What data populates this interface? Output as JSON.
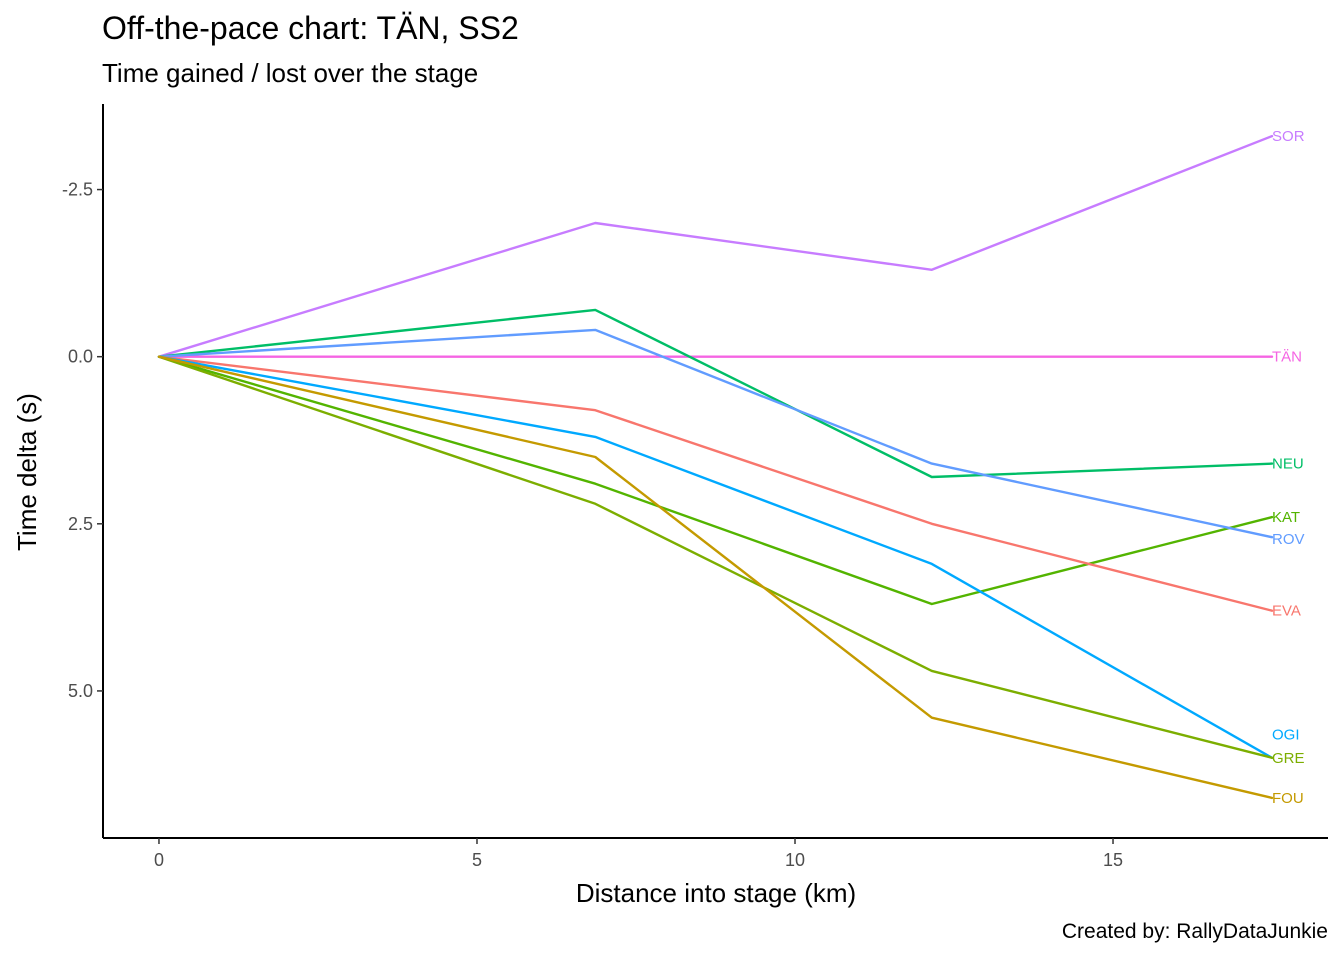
{
  "chart_data": {
    "type": "line",
    "title": "Off-the-pace chart: TÄN, SS2",
    "subtitle": "Time gained / lost over the stage",
    "caption": "Created by: RallyDataJunkie",
    "xlabel": "Distance into stage (km)",
    "ylabel": "Time delta (s)",
    "x_ticks": [
      0,
      5,
      10,
      15
    ],
    "y_ticks": [
      -2.5,
      0,
      2.5,
      5
    ],
    "y_tick_labels": [
      "-2.5",
      "0.0",
      "2.5",
      "5.0"
    ],
    "xlim": [
      -0.88,
      18.38
    ],
    "ylim": [
      7.2,
      -3.78
    ],
    "y_reversed": true,
    "grid": false,
    "legend": "none (labels at line ends)",
    "x": [
      0,
      6.86,
      12.15,
      17.5
    ],
    "series": [
      {
        "name": "SOR",
        "color": "#c77cff",
        "values": [
          0,
          -2.0,
          -1.3,
          -3.3
        ]
      },
      {
        "name": "TÄN",
        "color": "#f564e3",
        "values": [
          0,
          0,
          0,
          0
        ]
      },
      {
        "name": "NEU",
        "color": "#00be67",
        "values": [
          0,
          -0.7,
          1.8,
          1.6
        ]
      },
      {
        "name": "KAT",
        "color": "#53b400",
        "values": [
          0,
          1.9,
          3.7,
          2.4
        ]
      },
      {
        "name": "ROV",
        "color": "#619cff",
        "values": [
          0,
          -0.4,
          1.6,
          2.7
        ]
      },
      {
        "name": "EVA",
        "color": "#f8766d",
        "values": [
          0,
          0.8,
          2.5,
          3.8
        ]
      },
      {
        "name": "OGI",
        "color": "#00a9ff",
        "values": [
          0,
          1.2,
          3.1,
          6.0
        ]
      },
      {
        "name": "GRE",
        "color": "#7cae00",
        "values": [
          0,
          2.2,
          4.7,
          6.0
        ]
      },
      {
        "name": "FOU",
        "color": "#c49a00",
        "values": [
          0,
          1.5,
          5.4,
          6.6
        ]
      }
    ],
    "label_positions": [
      {
        "name": "SOR",
        "y": -3.3
      },
      {
        "name": "TÄN",
        "y": 0
      },
      {
        "name": "NEU",
        "y": 1.6
      },
      {
        "name": "KAT",
        "y": 2.4
      },
      {
        "name": "ROV",
        "y": 2.73
      },
      {
        "name": "EVA",
        "y": 3.8
      },
      {
        "name": "OGI",
        "y": 5.65
      },
      {
        "name": "GRE",
        "y": 6.0
      },
      {
        "name": "FOU",
        "y": 6.6
      }
    ]
  }
}
